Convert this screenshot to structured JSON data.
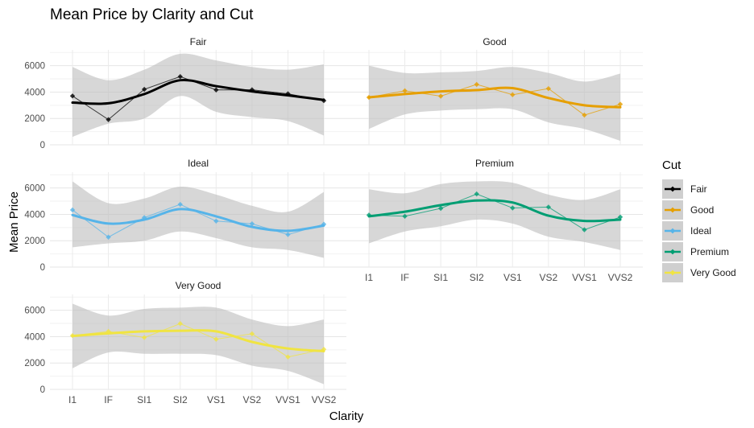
{
  "chart_data": {
    "type": "line",
    "title": "Mean Price by Clarity and Cut",
    "xlabel": "Clarity",
    "ylabel": "Mean Price",
    "ylim": [
      0,
      7200
    ],
    "y_ticks": [
      0,
      2000,
      4000,
      6000
    ],
    "y_tick_labels": [
      "0",
      "2000",
      "4000",
      "6000"
    ],
    "categories": [
      "I1",
      "IF",
      "SI1",
      "SI2",
      "VS1",
      "VS2",
      "VVS1",
      "VVS2"
    ],
    "grid": true,
    "facets": true,
    "legend": {
      "title": "Cut",
      "position": "right"
    },
    "series": [
      {
        "name": "Fair",
        "color": "#000000",
        "values": [
          3704,
          1912,
          4208,
          5174,
          4165,
          4175,
          3871,
          3350
        ],
        "smooth": [
          3200,
          3150,
          3850,
          4900,
          4450,
          4050,
          3750,
          3400
        ],
        "band_low": [
          600,
          1600,
          2000,
          3700,
          2500,
          2100,
          1800,
          700
        ],
        "band_high": [
          5900,
          4900,
          5700,
          6900,
          6400,
          5900,
          5700,
          6100
        ]
      },
      {
        "name": "Good",
        "color": "#E69F00",
        "values": [
          3597,
          4098,
          3690,
          4580,
          3801,
          4262,
          2255,
          3079
        ],
        "smooth": [
          3600,
          3850,
          4050,
          4150,
          4300,
          3550,
          3000,
          2850
        ],
        "band_low": [
          1200,
          2300,
          2600,
          2700,
          2700,
          1700,
          1200,
          300
        ],
        "band_high": [
          6000,
          5450,
          5500,
          5600,
          5900,
          5450,
          4800,
          5400
        ]
      },
      {
        "name": "Ideal",
        "color": "#56B4E9",
        "values": [
          4336,
          2273,
          3752,
          4756,
          3490,
          3285,
          2468,
          3250
        ],
        "smooth": [
          3950,
          3300,
          3600,
          4400,
          3850,
          3050,
          2750,
          3150
        ],
        "band_low": [
          1500,
          1800,
          2000,
          2700,
          2200,
          1500,
          1300,
          700
        ],
        "band_high": [
          6500,
          4850,
          5200,
          6100,
          5500,
          4650,
          4200,
          5700
        ]
      },
      {
        "name": "Premium",
        "color": "#009E73",
        "values": [
          3947,
          3857,
          4455,
          5546,
          4485,
          4550,
          2831,
          3795
        ],
        "smooth": [
          3850,
          4200,
          4700,
          5050,
          4900,
          3900,
          3500,
          3600
        ],
        "band_low": [
          1800,
          2700,
          3100,
          3600,
          3300,
          2300,
          1900,
          1300
        ],
        "band_high": [
          5900,
          5600,
          6300,
          6500,
          6400,
          5500,
          5100,
          5900
        ]
      },
      {
        "name": "Very Good",
        "color": "#F0E442",
        "values": [
          4078,
          4396,
          3932,
          4988,
          3805,
          4216,
          2460,
          3038
        ],
        "smooth": [
          4050,
          4250,
          4400,
          4450,
          4400,
          3600,
          3100,
          2900
        ],
        "band_low": [
          1600,
          2800,
          2700,
          2700,
          2600,
          1800,
          1400,
          400
        ],
        "band_high": [
          6500,
          5600,
          6100,
          6200,
          6200,
          5300,
          4800,
          5300
        ]
      }
    ]
  }
}
